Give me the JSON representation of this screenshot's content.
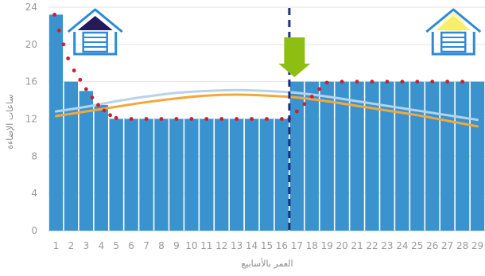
{
  "chart_data": {
    "type": "bar",
    "title": "",
    "xlabel": "العمر بالأسابيع",
    "ylabel": "ساعات الإضاءة",
    "ylim": [
      0,
      24
    ],
    "y_ticks": [
      0,
      4,
      8,
      12,
      16,
      20,
      24
    ],
    "grid": true,
    "categories": [
      "1",
      "2",
      "3",
      "4",
      "5",
      "6",
      "7",
      "8",
      "9",
      "10",
      "11",
      "12",
      "13",
      "14",
      "15",
      "16",
      "17",
      "18",
      "19",
      "20",
      "21",
      "22",
      "23",
      "24",
      "25",
      "26",
      "27",
      "28",
      "29"
    ],
    "series": [
      {
        "kind": "bar",
        "color": "#3a93cf",
        "values": [
          23.2,
          16,
          15,
          13.5,
          12,
          12,
          12,
          12,
          12,
          12,
          12,
          12,
          12,
          12,
          12,
          12,
          16,
          16,
          16,
          16,
          16,
          16,
          16,
          16,
          16,
          16,
          16,
          16,
          16
        ]
      },
      {
        "kind": "dotted-line",
        "color": "#cc1f2d",
        "x": [
          0.9,
          1.2,
          1.5,
          1.8,
          2.2,
          2.6,
          3.0,
          3.4,
          3.8,
          4.2,
          4.6,
          5.0,
          6,
          7,
          8,
          9,
          10,
          11,
          12,
          13,
          14,
          15,
          16,
          16.5,
          17,
          17.5,
          18,
          18.5,
          19,
          20,
          21,
          22,
          23,
          24,
          25,
          26,
          27,
          28
        ],
        "values": [
          23.2,
          21.5,
          20,
          18.5,
          17.2,
          16.2,
          15.2,
          14.3,
          13.5,
          12.9,
          12.4,
          12.1,
          12,
          12,
          12,
          12,
          12,
          12,
          12,
          12,
          12,
          12,
          12,
          12,
          12.8,
          13.6,
          14.4,
          15.2,
          15.9,
          16,
          16,
          16,
          16,
          16,
          16,
          16,
          16,
          16
        ]
      },
      {
        "kind": "curve",
        "color": "#f2a93b",
        "x": [
          1,
          3,
          5,
          7,
          9,
          11,
          13,
          15,
          17,
          19,
          21,
          23,
          25,
          27,
          29
        ],
        "values": [
          12.3,
          12.8,
          13.3,
          13.8,
          14.2,
          14.5,
          14.6,
          14.5,
          14.3,
          13.9,
          13.4,
          12.9,
          12.4,
          11.8,
          11.2
        ]
      },
      {
        "kind": "curve",
        "color": "#b8d3e8",
        "x": [
          1,
          3,
          5,
          7,
          9,
          11,
          13,
          15,
          17,
          19,
          21,
          23,
          25,
          27,
          29
        ],
        "values": [
          12.8,
          13.3,
          13.9,
          14.4,
          14.8,
          15.0,
          15.1,
          15.0,
          14.8,
          14.4,
          13.9,
          13.4,
          12.9,
          12.4,
          11.9
        ]
      }
    ],
    "annotations": {
      "divider_x": 16.5,
      "divider_color": "#1f2f7a",
      "arrow_x": 17,
      "arrow_color": "#8cbf12",
      "house_left_x": 3.6,
      "house_right_x": 27.4,
      "house_color": "#2d8ad6",
      "house_left_roof_color": "#241a5a",
      "house_right_roof_color": "#f7ef6a"
    }
  }
}
